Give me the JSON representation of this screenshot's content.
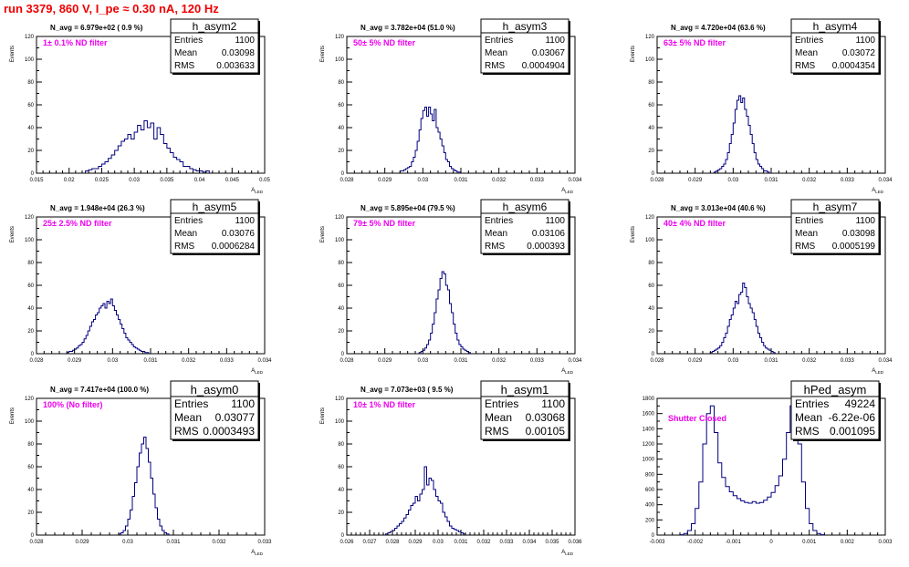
{
  "title": "run 3379,   860 V, I_pe ≈ 0.30 nA, 120 Hz",
  "colors": {
    "title": "#ee0000",
    "annotation": "#ee00ee",
    "histogram": "#000080",
    "frame": "#000000",
    "background": "#ffffff"
  },
  "chart_data": [
    {
      "type": "bar",
      "name": "h_asym2",
      "ylabel": "Events",
      "xlabel": "A_LED",
      "stats": {
        "Entries": "1100",
        "Mean": "0.03098",
        "RMS": "0.003633"
      },
      "stats_font": "small",
      "navg": "N_avg = 6.979e+02 ( 0.9 %)",
      "filter": "1± 0.1% ND filter",
      "xlim": [
        0.015,
        0.05
      ],
      "ylim": [
        0,
        120
      ],
      "xticks": [
        0.015,
        0.02,
        0.025,
        0.03,
        0.035,
        0.04,
        0.045,
        0.05
      ],
      "xtick_labels": [
        "0.015",
        "0.02",
        "0.025",
        "0.03",
        "0.035",
        "0.04",
        "0.045",
        "0.05"
      ],
      "yticks": [
        0,
        20,
        40,
        60,
        80,
        100,
        120
      ],
      "x_start": 0.0225,
      "bin_width": 0.0005,
      "values": [
        2,
        3,
        4,
        4,
        6,
        8,
        10,
        13,
        16,
        20,
        24,
        28,
        30,
        34,
        30,
        36,
        42,
        38,
        46,
        40,
        44,
        30,
        40,
        34,
        26,
        22,
        18,
        14,
        12,
        10,
        6,
        6,
        4,
        3,
        2,
        2,
        1,
        2
      ]
    },
    {
      "type": "bar",
      "name": "h_asym3",
      "ylabel": "Events",
      "xlabel": "A_LED",
      "stats": {
        "Entries": "1100",
        "Mean": "0.03067",
        "RMS": "0.0004904"
      },
      "stats_font": "small",
      "navg": "N_avg = 3.782e+04 (51.0 %)",
      "filter": "50± 5% ND filter",
      "xlim": [
        0.028,
        0.034
      ],
      "ylim": [
        0,
        120
      ],
      "xticks": [
        0.028,
        0.029,
        0.03,
        0.031,
        0.032,
        0.033,
        0.034
      ],
      "xtick_labels": [
        "0.028",
        "0.029",
        "0.03",
        "0.031",
        "0.032",
        "0.033",
        "0.034"
      ],
      "yticks": [
        0,
        20,
        40,
        60,
        80,
        100,
        120
      ],
      "x_start": 0.0294,
      "bin_width": 5e-05,
      "values": [
        2,
        2,
        3,
        4,
        5,
        6,
        10,
        14,
        20,
        28,
        38,
        48,
        55,
        58,
        50,
        58,
        52,
        46,
        56,
        40,
        36,
        30,
        24,
        18,
        12,
        10,
        6,
        4,
        3,
        2,
        1,
        1
      ]
    },
    {
      "type": "bar",
      "name": "h_asym4",
      "ylabel": "Events",
      "xlabel": "A_LED",
      "stats": {
        "Entries": "1100",
        "Mean": "0.03072",
        "RMS": "0.0004354"
      },
      "stats_font": "small",
      "navg": "N_avg = 4.720e+04 (63.6 %)",
      "filter": "63± 5% ND filter",
      "xlim": [
        0.028,
        0.034
      ],
      "ylim": [
        0,
        120
      ],
      "xticks": [
        0.028,
        0.029,
        0.03,
        0.031,
        0.032,
        0.033,
        0.034
      ],
      "xtick_labels": [
        "0.028",
        "0.029",
        "0.03",
        "0.031",
        "0.032",
        "0.033",
        "0.034"
      ],
      "yticks": [
        0,
        20,
        40,
        60,
        80,
        100,
        120
      ],
      "x_start": 0.0295,
      "bin_width": 5e-05,
      "values": [
        1,
        2,
        3,
        4,
        6,
        8,
        12,
        18,
        26,
        34,
        44,
        56,
        64,
        68,
        62,
        66,
        56,
        50,
        42,
        34,
        26,
        18,
        12,
        8,
        6,
        4,
        2,
        2,
        1
      ]
    },
    {
      "type": "bar",
      "name": "h_asym5",
      "ylabel": "Events",
      "xlabel": "A_LED",
      "stats": {
        "Entries": "1100",
        "Mean": "0.03076",
        "RMS": "0.0006284"
      },
      "stats_font": "small",
      "navg": "N_avg = 1.948e+04 (26.3 %)",
      "filter": "25± 2.5% ND filter",
      "xlim": [
        0.028,
        0.034
      ],
      "ylim": [
        0,
        120
      ],
      "xticks": [
        0.028,
        0.029,
        0.03,
        0.031,
        0.032,
        0.033,
        0.034
      ],
      "xtick_labels": [
        "0.028",
        "0.029",
        "0.03",
        "0.031",
        "0.032",
        "0.033",
        "0.034"
      ],
      "yticks": [
        0,
        20,
        40,
        60,
        80,
        100,
        120
      ],
      "x_start": 0.0288,
      "bin_width": 5e-05,
      "values": [
        1,
        2,
        2,
        3,
        4,
        5,
        7,
        8,
        10,
        13,
        16,
        20,
        24,
        28,
        30,
        34,
        36,
        40,
        42,
        44,
        40,
        46,
        44,
        48,
        42,
        38,
        34,
        30,
        26,
        22,
        18,
        14,
        12,
        10,
        8,
        6,
        5,
        4,
        3,
        2,
        2,
        1,
        1
      ]
    },
    {
      "type": "bar",
      "name": "h_asym6",
      "ylabel": "Events",
      "xlabel": "A_LED",
      "stats": {
        "Entries": "1100",
        "Mean": "0.03106",
        "RMS": "0.000393"
      },
      "stats_font": "small",
      "navg": "N_avg = 5.895e+04 (79.5 %)",
      "filter": "79± 5% ND filter",
      "xlim": [
        0.028,
        0.034
      ],
      "ylim": [
        0,
        120
      ],
      "xticks": [
        0.028,
        0.029,
        0.03,
        0.031,
        0.032,
        0.033,
        0.034
      ],
      "xtick_labels": [
        "0.028",
        "0.029",
        "0.03",
        "0.031",
        "0.032",
        "0.033",
        "0.034"
      ],
      "yticks": [
        0,
        20,
        40,
        60,
        80,
        100,
        120
      ],
      "x_start": 0.0299,
      "bin_width": 5e-05,
      "values": [
        1,
        2,
        3,
        5,
        8,
        12,
        18,
        26,
        36,
        48,
        56,
        66,
        72,
        70,
        60,
        56,
        44,
        36,
        26,
        18,
        12,
        8,
        6,
        4,
        3,
        2,
        1
      ]
    },
    {
      "type": "bar",
      "name": "h_asym7",
      "ylabel": "Events",
      "xlabel": "A_LED",
      "stats": {
        "Entries": "1100",
        "Mean": "0.03098",
        "RMS": "0.0005199"
      },
      "stats_font": "small",
      "navg": "N_avg = 3.013e+04 (40.6 %)",
      "filter": "40± 4% ND filter",
      "xlim": [
        0.028,
        0.034
      ],
      "ylim": [
        0,
        120
      ],
      "xticks": [
        0.028,
        0.029,
        0.03,
        0.031,
        0.032,
        0.033,
        0.034
      ],
      "xtick_labels": [
        "0.028",
        "0.029",
        "0.03",
        "0.031",
        "0.032",
        "0.033",
        "0.034"
      ],
      "yticks": [
        0,
        20,
        40,
        60,
        80,
        100,
        120
      ],
      "x_start": 0.0294,
      "bin_width": 5e-05,
      "values": [
        1,
        2,
        3,
        4,
        5,
        7,
        10,
        14,
        18,
        24,
        30,
        34,
        40,
        46,
        44,
        52,
        54,
        62,
        58,
        50,
        44,
        40,
        36,
        30,
        24,
        18,
        14,
        10,
        7,
        5,
        4,
        3,
        2,
        1
      ]
    },
    {
      "type": "bar",
      "name": "h_asym0",
      "ylabel": "Events",
      "xlabel": "A_LED",
      "stats": {
        "Entries": "1100",
        "Mean": "0.03077",
        "RMS": "0.0003493"
      },
      "stats_font": "large",
      "navg": "N_avg = 7.417e+04 (100.0 %)",
      "filter": "100% (No filter)",
      "xlim": [
        0.028,
        0.033
      ],
      "ylim": [
        0,
        120
      ],
      "xticks": [
        0.028,
        0.029,
        0.03,
        0.031,
        0.032,
        0.033
      ],
      "xtick_labels": [
        "0.028",
        "0.029",
        "0.03",
        "0.031",
        "0.032",
        "0.033"
      ],
      "yticks": [
        0,
        20,
        40,
        60,
        80,
        100,
        120
      ],
      "x_start": 0.0298,
      "bin_width": 5e-05,
      "values": [
        1,
        2,
        4,
        8,
        14,
        22,
        34,
        46,
        60,
        72,
        80,
        86,
        76,
        64,
        50,
        36,
        24,
        14,
        8,
        4,
        2,
        1
      ]
    },
    {
      "type": "bar",
      "name": "h_asym1",
      "ylabel": "Events",
      "xlabel": "A_LED",
      "stats": {
        "Entries": "1100",
        "Mean": "0.03068",
        "RMS": "0.00105"
      },
      "stats_font": "large",
      "navg": "N_avg = 7.073e+03 ( 9.5 %)",
      "filter": "10± 1% ND filter",
      "xlim": [
        0.026,
        0.036
      ],
      "ylim": [
        0,
        120
      ],
      "xticks": [
        0.026,
        0.027,
        0.028,
        0.029,
        0.03,
        0.031,
        0.032,
        0.033,
        0.034,
        0.035,
        0.036
      ],
      "xtick_labels": [
        "0.026",
        "0.027",
        "0.028",
        "0.029",
        "0.03",
        "0.031",
        "0.032",
        "0.033",
        "0.034",
        "0.035",
        "0.036"
      ],
      "yticks": [
        0,
        20,
        40,
        60,
        80,
        100,
        120
      ],
      "x_start": 0.0277,
      "bin_width": 0.0001,
      "values": [
        1,
        2,
        3,
        4,
        6,
        8,
        10,
        12,
        15,
        18,
        22,
        26,
        28,
        34,
        30,
        36,
        40,
        60,
        44,
        50,
        48,
        40,
        34,
        30,
        28,
        20,
        16,
        12,
        8,
        6,
        5,
        4,
        3,
        2,
        1
      ]
    },
    {
      "type": "bar",
      "name": "hPed_asym",
      "ylabel": "",
      "xlabel": "",
      "stats": {
        "Entries": "49224",
        "Mean": "-6.22e-06",
        "RMS": "0.001095"
      },
      "stats_font": "large",
      "navg": "",
      "filter": "Shutter Closed",
      "xlim": [
        -0.003,
        0.003
      ],
      "ylim": [
        0,
        1800
      ],
      "xticks": [
        -0.003,
        -0.002,
        -0.001,
        0,
        0.001,
        0.002,
        0.003
      ],
      "xtick_labels": [
        "-0.003",
        "-0.002",
        "-0.001",
        "0",
        "0.001",
        "0.002",
        "0.003"
      ],
      "yticks": [
        0,
        200,
        400,
        600,
        800,
        1000,
        1200,
        1400,
        1600,
        1800
      ],
      "x_start": -0.0024,
      "bin_width": 0.0001,
      "values": [
        5,
        20,
        60,
        150,
        350,
        700,
        1200,
        1600,
        1700,
        1350,
        950,
        760,
        640,
        570,
        520,
        480,
        450,
        430,
        420,
        440,
        420,
        430,
        460,
        500,
        560,
        650,
        780,
        1000,
        1350,
        1700,
        1660,
        1200,
        700,
        350,
        150,
        60,
        20,
        5
      ]
    }
  ]
}
